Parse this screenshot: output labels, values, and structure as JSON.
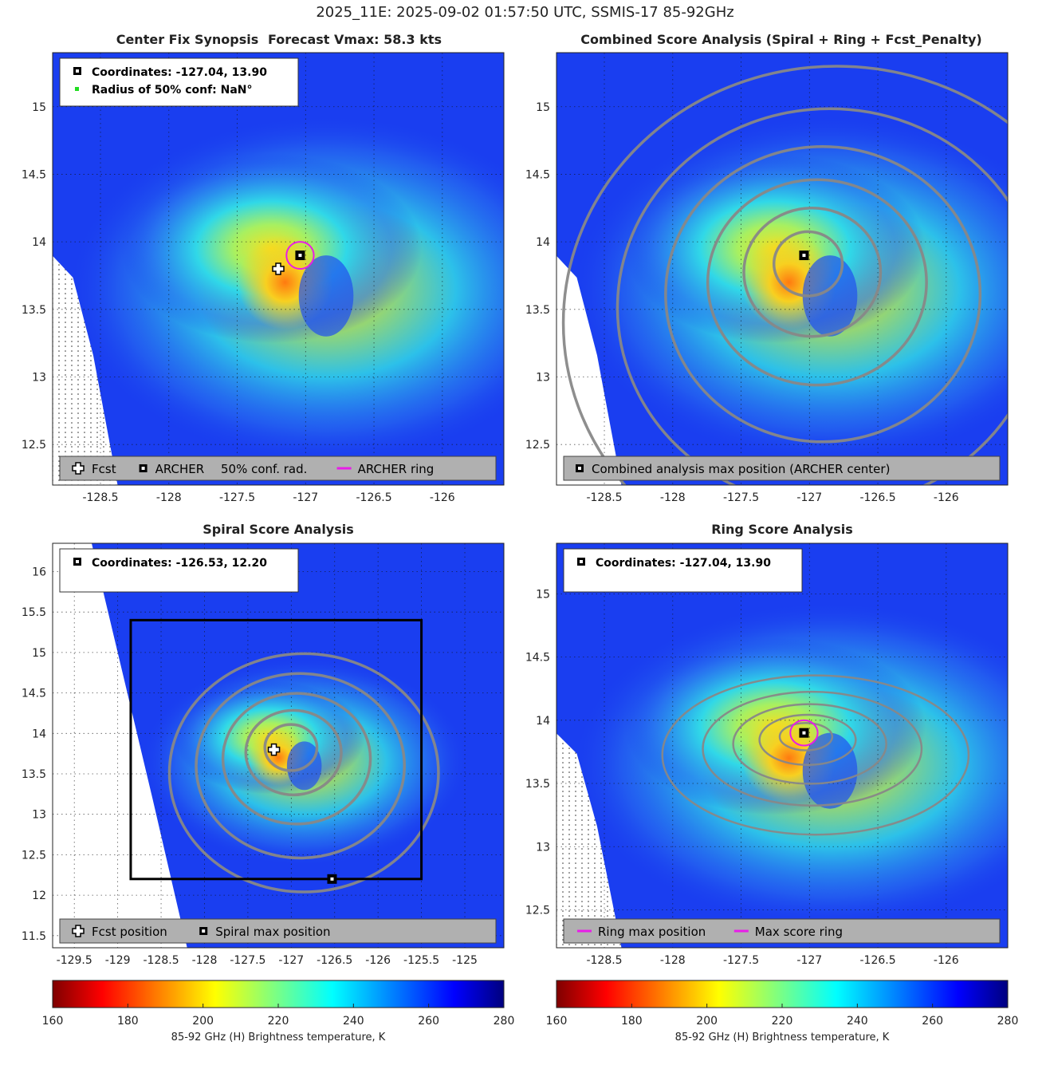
{
  "suptitle": "2025_11E: 2025-09-02 01:57:50 UTC, SSMIS-17 85-92GHz",
  "colors": {
    "ring": "#e81ce8",
    "contour": "#888888",
    "conf_dot": "#22dd22"
  },
  "chart_data": [
    {
      "id": "center_fix",
      "type": "heatmap",
      "title_left": "Center Fix Synopsis",
      "title_right": "Forecast Vmax: 58.3 kts",
      "xlim": [
        -128.85,
        -125.55
      ],
      "ylim": [
        12.2,
        15.4
      ],
      "xticks": [
        -128.5,
        -128,
        -127.5,
        -127,
        -126.5,
        -126
      ],
      "yticks": [
        12.5,
        13,
        13.5,
        14,
        14.5,
        15
      ],
      "info_lines": [
        "Coordinates: -127.04, 13.90",
        "Radius of 50% conf: NaN°"
      ],
      "legend": [
        "Fcst",
        "ARCHER",
        "50% conf. rad.",
        "ARCHER ring"
      ],
      "archer_center": [
        -127.04,
        13.9
      ],
      "fcst_position": [
        -127.2,
        13.8
      ],
      "ring_radius_deg": 0.1
    },
    {
      "id": "combined",
      "type": "heatmap",
      "title": "Combined Score Analysis (Spiral + Ring + Fcst_Penalty)",
      "xlim": [
        -128.85,
        -125.55
      ],
      "ylim": [
        12.2,
        15.4
      ],
      "xticks": [
        -128.5,
        -128,
        -127.5,
        -127,
        -126.5,
        -126
      ],
      "yticks": [
        12.5,
        13,
        13.5,
        14,
        14.5,
        15
      ],
      "legend": [
        "Combined analysis max position (ARCHER center)"
      ],
      "max_position": [
        -127.04,
        13.9
      ]
    },
    {
      "id": "spiral",
      "type": "heatmap",
      "title": "Spiral Score Analysis",
      "xlim": [
        -129.75,
        -124.55
      ],
      "ylim": [
        11.35,
        16.35
      ],
      "xticks": [
        -129.5,
        -129,
        -128.5,
        -128,
        -127.5,
        -127,
        -126.5,
        -126,
        -125.5,
        -125
      ],
      "yticks": [
        11.5,
        12,
        12.5,
        13,
        13.5,
        14,
        14.5,
        15,
        15.5,
        16
      ],
      "info_lines": [
        "Coordinates: -126.53, 12.20"
      ],
      "legend": [
        "Fcst position",
        "Spiral max position"
      ],
      "search_box": {
        "lon": [
          -128.85,
          -125.5
        ],
        "lat": [
          12.2,
          15.4
        ]
      },
      "max_position": [
        -126.53,
        12.2
      ],
      "fcst_position": [
        -127.2,
        13.8
      ]
    },
    {
      "id": "ring",
      "type": "heatmap",
      "title": "Ring Score Analysis",
      "xlim": [
        -128.85,
        -125.55
      ],
      "ylim": [
        12.2,
        15.4
      ],
      "xticks": [
        -128.5,
        -128,
        -127.5,
        -127,
        -126.5,
        -126
      ],
      "yticks": [
        12.5,
        13,
        13.5,
        14,
        14.5,
        15
      ],
      "info_lines": [
        "Coordinates: -127.04, 13.90"
      ],
      "legend": [
        "Ring max position",
        "Max score ring"
      ],
      "max_position": [
        -127.04,
        13.9
      ],
      "ring_radius_deg": 0.1
    }
  ],
  "colorbar": {
    "ticks": [
      160,
      180,
      200,
      220,
      240,
      260,
      280
    ],
    "label": "85-92 GHz (H) Brightness temperature, K",
    "range": [
      160,
      280
    ]
  }
}
